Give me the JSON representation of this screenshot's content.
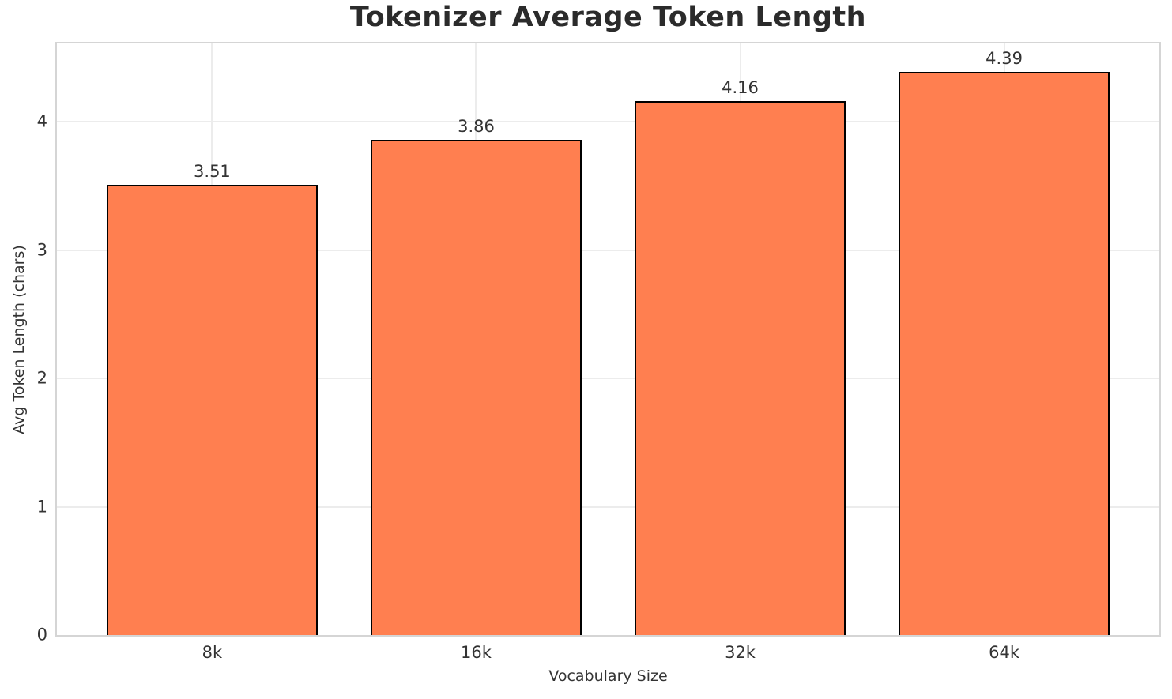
{
  "chart_data": {
    "type": "bar",
    "title": "Tokenizer Average Token Length",
    "xlabel": "Vocabulary Size",
    "ylabel": "Avg Token Length (chars)",
    "categories": [
      "8k",
      "16k",
      "32k",
      "64k"
    ],
    "values": [
      3.51,
      3.86,
      4.16,
      4.39
    ],
    "value_labels": [
      "3.51",
      "3.86",
      "4.16",
      "4.39"
    ],
    "yticks": [
      0,
      1,
      2,
      3,
      4
    ],
    "ylim": [
      0,
      4.61
    ],
    "grid": true,
    "legend": "none",
    "colors": {
      "bar_fill": "#FF7F50",
      "bar_edge": "#000000",
      "grid": "#ECECEC",
      "spine": "#D5D5D5",
      "title_text": "#2B2B2B",
      "text": "#333333",
      "background": "#FFFFFF"
    }
  }
}
